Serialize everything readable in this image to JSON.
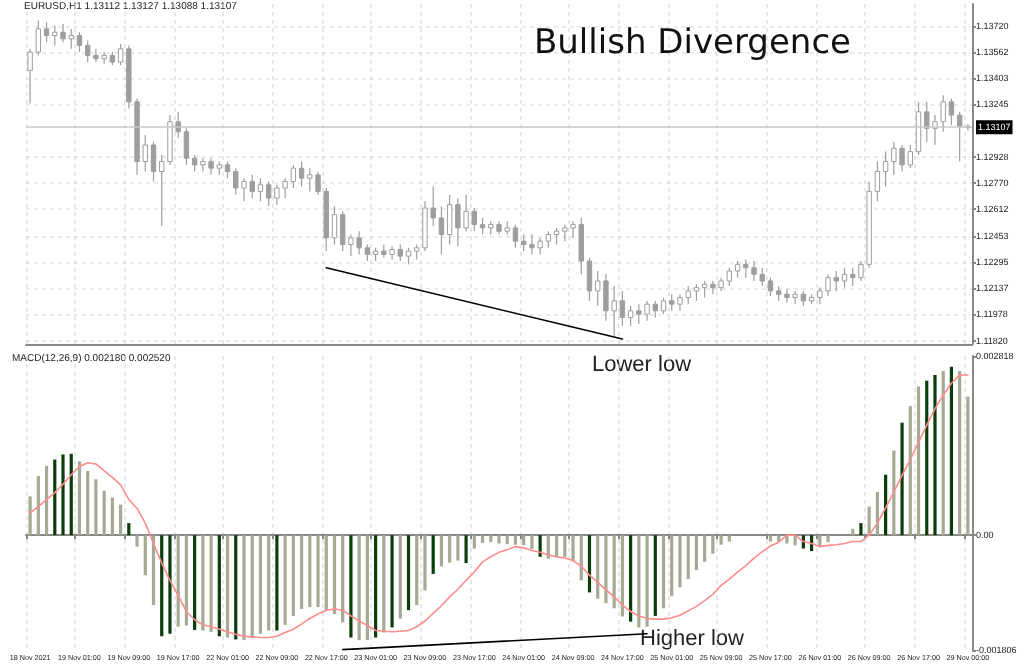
{
  "chart_data": [
    {
      "type": "candlestick",
      "title": "Bullish Divergence",
      "annotations": [
        "EURUSD,H1 1.13112 1.13127 1.13088 1.13107"
      ],
      "color": "#9e9e9e",
      "grid": true,
      "tick_labels": "y",
      "categories": [
        null,
        null,
        null,
        null,
        null,
        null,
        null,
        null,
        null,
        null,
        null,
        null,
        null,
        null,
        null,
        null,
        null,
        null,
        null,
        null,
        null,
        null,
        null,
        null,
        null,
        null,
        null,
        null,
        null,
        null,
        null,
        null,
        null,
        null,
        null,
        null,
        null,
        null,
        null,
        null,
        null,
        null,
        null,
        null,
        null,
        null,
        null,
        null,
        null,
        null,
        null,
        null,
        null,
        null,
        null,
        null,
        null,
        null,
        null,
        null,
        null,
        null,
        null,
        null,
        null,
        null,
        null,
        null,
        null,
        null,
        null,
        null,
        null,
        null,
        null,
        null,
        null,
        null,
        null,
        null,
        null,
        null,
        null,
        null,
        null,
        null,
        null,
        null,
        null,
        null,
        null,
        null,
        null,
        null,
        null,
        null,
        null,
        null,
        null,
        null,
        null,
        null,
        null,
        null,
        null,
        null,
        null,
        null,
        null,
        null,
        null,
        null,
        null,
        null,
        null
      ],
      "ohlc": [
        [
          1.1345,
          1.1358,
          1.1325,
          1.1356
        ],
        [
          1.1356,
          1.1375,
          1.1354,
          1.137
        ],
        [
          1.137,
          1.1374,
          1.1362,
          1.1366
        ],
        [
          1.1366,
          1.1372,
          1.136,
          1.1368
        ],
        [
          1.1368,
          1.1373,
          1.1362,
          1.1364
        ],
        [
          1.1364,
          1.137,
          1.1358,
          1.1366
        ],
        [
          1.1366,
          1.1368,
          1.1356,
          1.136
        ],
        [
          1.136,
          1.1363,
          1.135,
          1.1354
        ],
        [
          1.1354,
          1.1358,
          1.135,
          1.1352
        ],
        [
          1.1352,
          1.1356,
          1.1349,
          1.1354
        ],
        [
          1.1354,
          1.1356,
          1.1348,
          1.135
        ],
        [
          1.135,
          1.1361,
          1.1348,
          1.1358
        ],
        [
          1.1358,
          1.136,
          1.1322,
          1.1326
        ],
        [
          1.1326,
          1.1328,
          1.1282,
          1.129
        ],
        [
          1.129,
          1.1306,
          1.1284,
          1.13
        ],
        [
          1.13,
          1.1302,
          1.1278,
          1.1284
        ],
        [
          1.1284,
          1.1294,
          1.1251,
          1.129
        ],
        [
          1.129,
          1.1318,
          1.1288,
          1.1314
        ],
        [
          1.1314,
          1.132,
          1.1304,
          1.1308
        ],
        [
          1.1308,
          1.131,
          1.1288,
          1.1292
        ],
        [
          1.1292,
          1.1294,
          1.1284,
          1.1288
        ],
        [
          1.1288,
          1.1292,
          1.1284,
          1.129
        ],
        [
          1.129,
          1.1292,
          1.1282,
          1.1286
        ],
        [
          1.1286,
          1.129,
          1.1282,
          1.1288
        ],
        [
          1.1288,
          1.129,
          1.128,
          1.1284
        ],
        [
          1.1284,
          1.1286,
          1.127,
          1.1274
        ],
        [
          1.1274,
          1.128,
          1.1266,
          1.1278
        ],
        [
          1.1278,
          1.1282,
          1.1268,
          1.1272
        ],
        [
          1.1272,
          1.128,
          1.1266,
          1.1276
        ],
        [
          1.1276,
          1.1278,
          1.1263,
          1.1268
        ],
        [
          1.1268,
          1.1276,
          1.1264,
          1.1274
        ],
        [
          1.1274,
          1.128,
          1.1268,
          1.1278
        ],
        [
          1.1278,
          1.1288,
          1.1274,
          1.1286
        ],
        [
          1.1286,
          1.129,
          1.1275,
          1.128
        ],
        [
          1.128,
          1.1286,
          1.1272,
          1.1282
        ],
        [
          1.1282,
          1.1284,
          1.127,
          1.1272
        ],
        [
          1.1272,
          1.1274,
          1.1236,
          1.1244
        ],
        [
          1.1244,
          1.1263,
          1.124,
          1.1258
        ],
        [
          1.1258,
          1.126,
          1.1236,
          1.124
        ],
        [
          1.124,
          1.1246,
          1.1233,
          1.1244
        ],
        [
          1.1244,
          1.1248,
          1.1234,
          1.1238
        ],
        [
          1.1238,
          1.124,
          1.123,
          1.1234
        ],
        [
          1.1234,
          1.1238,
          1.123,
          1.1236
        ],
        [
          1.1236,
          1.124,
          1.1232,
          1.1234
        ],
        [
          1.1234,
          1.1239,
          1.1231,
          1.1237
        ],
        [
          1.1237,
          1.124,
          1.123,
          1.1233
        ],
        [
          1.1233,
          1.1238,
          1.1228,
          1.1236
        ],
        [
          1.1236,
          1.124,
          1.1231,
          1.1238
        ],
        [
          1.1238,
          1.1266,
          1.1236,
          1.1262
        ],
        [
          1.1262,
          1.1275,
          1.1251,
          1.1256
        ],
        [
          1.1256,
          1.1263,
          1.1234,
          1.1246
        ],
        [
          1.1246,
          1.127,
          1.124,
          1.1264
        ],
        [
          1.1264,
          1.1268,
          1.1239,
          1.125
        ],
        [
          1.125,
          1.127,
          1.1248,
          1.126
        ],
        [
          1.126,
          1.1262,
          1.1248,
          1.1252
        ],
        [
          1.1252,
          1.1256,
          1.1246,
          1.125
        ],
        [
          1.125,
          1.1254,
          1.1246,
          1.1252
        ],
        [
          1.1252,
          1.1254,
          1.1246,
          1.1248
        ],
        [
          1.1248,
          1.1254,
          1.1246,
          1.125
        ],
        [
          1.125,
          1.1252,
          1.1238,
          1.1242
        ],
        [
          1.1242,
          1.1246,
          1.1236,
          1.124
        ],
        [
          1.124,
          1.1246,
          1.1234,
          1.1238
        ],
        [
          1.1238,
          1.1244,
          1.1234,
          1.1242
        ],
        [
          1.1242,
          1.1248,
          1.1238,
          1.1246
        ],
        [
          1.1246,
          1.125,
          1.124,
          1.1248
        ],
        [
          1.1248,
          1.1252,
          1.1242,
          1.125
        ],
        [
          1.125,
          1.1254,
          1.1244,
          1.1252
        ],
        [
          1.1252,
          1.1256,
          1.1222,
          1.123
        ],
        [
          1.123,
          1.1232,
          1.1206,
          1.1212
        ],
        [
          1.1212,
          1.1224,
          1.1203,
          1.1218
        ],
        [
          1.1218,
          1.1222,
          1.1194,
          1.12
        ],
        [
          1.12,
          1.1215,
          1.1185,
          1.1206
        ],
        [
          1.1206,
          1.1212,
          1.1191,
          1.1196
        ],
        [
          1.1196,
          1.1203,
          1.1191,
          1.12
        ],
        [
          1.12,
          1.1204,
          1.1192,
          1.1198
        ],
        [
          1.1198,
          1.1206,
          1.1194,
          1.1204
        ],
        [
          1.1204,
          1.1206,
          1.1196,
          1.12
        ],
        [
          1.12,
          1.1208,
          1.1198,
          1.1206
        ],
        [
          1.1206,
          1.121,
          1.12,
          1.1204
        ],
        [
          1.1204,
          1.121,
          1.12,
          1.1208
        ],
        [
          1.1208,
          1.1215,
          1.1204,
          1.1212
        ],
        [
          1.1212,
          1.1216,
          1.1206,
          1.1214
        ],
        [
          1.1214,
          1.1218,
          1.1208,
          1.1216
        ],
        [
          1.1216,
          1.1218,
          1.121,
          1.1214
        ],
        [
          1.1214,
          1.122,
          1.1212,
          1.1218
        ],
        [
          1.1218,
          1.1226,
          1.1215,
          1.1224
        ],
        [
          1.1224,
          1.123,
          1.122,
          1.1228
        ],
        [
          1.1228,
          1.1231,
          1.122,
          1.1226
        ],
        [
          1.1226,
          1.123,
          1.1218,
          1.1222
        ],
        [
          1.1222,
          1.1226,
          1.1215,
          1.1218
        ],
        [
          1.1218,
          1.122,
          1.1209,
          1.1212
        ],
        [
          1.1212,
          1.1215,
          1.1206,
          1.121
        ],
        [
          1.121,
          1.1213,
          1.1205,
          1.1208
        ],
        [
          1.1208,
          1.1212,
          1.1204,
          1.121
        ],
        [
          1.121,
          1.1212,
          1.1203,
          1.1206
        ],
        [
          1.1206,
          1.121,
          1.1204,
          1.1208
        ],
        [
          1.1208,
          1.1214,
          1.1204,
          1.1212
        ],
        [
          1.1212,
          1.1222,
          1.1209,
          1.122
        ],
        [
          1.122,
          1.1224,
          1.1212,
          1.1218
        ],
        [
          1.1218,
          1.1226,
          1.1214,
          1.1222
        ],
        [
          1.1222,
          1.1226,
          1.1215,
          1.122
        ],
        [
          1.122,
          1.123,
          1.1218,
          1.1228
        ],
        [
          1.1228,
          1.1278,
          1.1226,
          1.1272
        ],
        [
          1.1272,
          1.129,
          1.1266,
          1.1284
        ],
        [
          1.1284,
          1.1296,
          1.1275,
          1.129
        ],
        [
          1.129,
          1.1302,
          1.1282,
          1.1298
        ],
        [
          1.1298,
          1.13,
          1.1284,
          1.1288
        ],
        [
          1.1288,
          1.13,
          1.1286,
          1.1296
        ],
        [
          1.1296,
          1.1326,
          1.1294,
          1.132
        ],
        [
          1.132,
          1.1326,
          1.1302,
          1.131
        ],
        [
          1.131,
          1.1318,
          1.13,
          1.1314
        ],
        [
          1.1314,
          1.133,
          1.1308,
          1.1326
        ],
        [
          1.1326,
          1.1328,
          1.1312,
          1.1318
        ],
        [
          1.1318,
          1.132,
          1.129,
          1.1311
        ],
        [
          1.13112,
          1.13127,
          1.13088,
          1.13107
        ]
      ],
      "series": [
        {
          "type": "line",
          "color": "#000000",
          "values": [
            null,
            null,
            null,
            null,
            null,
            null,
            null,
            null,
            null,
            null,
            null,
            null,
            null,
            null,
            null,
            null,
            null,
            null,
            null,
            null,
            null,
            null,
            null,
            null,
            null,
            null,
            null,
            null,
            null,
            null,
            null,
            null,
            null,
            null,
            null,
            null,
            1.1226,
            null,
            null,
            null,
            null,
            null,
            null,
            null,
            null,
            null,
            null,
            null,
            null,
            null,
            null,
            null,
            null,
            null,
            null,
            null,
            null,
            null,
            null,
            null,
            null,
            null,
            null,
            null,
            null,
            null,
            null,
            null,
            null,
            null,
            null,
            null,
            1.1183,
            null,
            null,
            null,
            null,
            null,
            null,
            null,
            null,
            null,
            null,
            null,
            null,
            null,
            null,
            null,
            null,
            null,
            null,
            null,
            null,
            null,
            null,
            null,
            null,
            null,
            null,
            null,
            null,
            null,
            null,
            null,
            null,
            null,
            null,
            null,
            null,
            null,
            null,
            null,
            null,
            null,
            null
          ]
        }
      ],
      "ylim": [
        1.118,
        1.1385
      ],
      "yticks": [
        {
          "value": 1.1372,
          "label": "1.13720"
        },
        1.13562,
        1.13403,
        1.13245,
        1.12928,
        {
          "value": 1.1277,
          "label": "1.12770"
        },
        1.12612,
        1.12453,
        1.12295,
        1.12137,
        1.11978,
        {
          "value": 1.1182,
          "label": "1.11820"
        }
      ],
      "ref_lines": [
        {
          "axis": "y",
          "value": 1.13107,
          "label": "1.13107",
          "color": "#c8c8c8"
        }
      ]
    },
    {
      "type": "bar",
      "annotations": [
        "MACD(12,26,9) 0.002180 0.002520",
        "Lower low",
        "Higher low"
      ],
      "grid": "x",
      "categories": [
        "18 Nov 2021",
        null,
        null,
        null,
        null,
        null,
        "19 Nov 01:00",
        null,
        null,
        null,
        null,
        null,
        "19 Nov 09:00",
        null,
        null,
        null,
        null,
        null,
        "19 Nov 17:00",
        null,
        null,
        null,
        null,
        null,
        "22 Nov 01:00",
        null,
        null,
        null,
        null,
        null,
        "22 Nov 09:00",
        null,
        null,
        null,
        null,
        null,
        "22 Nov 17:00",
        null,
        null,
        null,
        null,
        null,
        "23 Nov 01:00",
        null,
        null,
        null,
        null,
        null,
        "23 Nov 09:00",
        null,
        null,
        null,
        null,
        null,
        "23 Nov 17:00",
        null,
        null,
        null,
        null,
        null,
        "24 Nov 01:00",
        null,
        null,
        null,
        null,
        null,
        "24 Nov 09:00",
        null,
        null,
        null,
        null,
        null,
        "24 Nov 17:00",
        null,
        null,
        null,
        null,
        null,
        "25 Nov 01:00",
        null,
        null,
        null,
        null,
        null,
        "25 Nov 09:00",
        null,
        null,
        null,
        null,
        null,
        "25 Nov 17:00",
        null,
        null,
        null,
        null,
        null,
        "26 Nov 01:00",
        null,
        null,
        null,
        null,
        null,
        "26 Nov 09:00",
        null,
        null,
        null,
        null,
        null,
        "26 Nov 17:00",
        null,
        null,
        null,
        null,
        null,
        "29 Nov 00:00"
      ],
      "series": [
        {
          "type": "bar",
          "colors": [
            "#a4aa94",
            "#a4aa94",
            "#a4aa94",
            "#0b3d0b",
            "#0b3d0b",
            "#0b3d0b",
            "#a4aa94",
            "#a4aa94",
            "#a4aa94",
            "#a4aa94",
            "#a4aa94",
            "#a4aa94",
            "#0b3d0b",
            "#a4aa94",
            "#a4aa94",
            "#a4aa94",
            "#0b3d0b",
            "#0b3d0b",
            "#a4aa94",
            "#a4aa94",
            "#0b3d0b",
            "#a4aa94",
            "#a4aa94",
            "#0b3d0b",
            "#a4aa94",
            "#0b3d0b",
            "#a4aa94",
            "#a4aa94",
            "#a4aa94",
            "#a4aa94",
            "#0b3d0b",
            "#a4aa94",
            "#a4aa94",
            "#a4aa94",
            "#a4aa94",
            "#a4aa94",
            "#a4aa94",
            "#a4aa94",
            "#a4aa94",
            "#0b3d0b",
            "#a4aa94",
            "#a4aa94",
            "#0b3d0b",
            "#a4aa94",
            "#0b3d0b",
            "#a4aa94",
            "#0b3d0b",
            "#a4aa94",
            "#a4aa94",
            "#0b3d0b",
            "#a4aa94",
            "#a4aa94",
            "#a4aa94",
            "#0b3d0b",
            "#a4aa94",
            "#a4aa94",
            "#a4aa94",
            "#a4aa94",
            "#a4aa94",
            "#a4aa94",
            "#a4aa94",
            "#a4aa94",
            "#0b3d0b",
            "#a4aa94",
            "#a4aa94",
            "#a4aa94",
            "#a4aa94",
            "#a4aa94",
            "#0b3d0b",
            "#a4aa94",
            "#a4aa94",
            "#a4aa94",
            "#a4aa94",
            "#0b3d0b",
            "#a4aa94",
            "#a4aa94",
            "#0b3d0b",
            "#a4aa94",
            "#a4aa94",
            "#a4aa94",
            "#a4aa94",
            "#a4aa94",
            "#a4aa94",
            "#a4aa94",
            "#a4aa94",
            "#a4aa94",
            "#a4aa94",
            "#a4aa94",
            "#a4aa94",
            "#a4aa94",
            "#a4aa94",
            "#a4aa94",
            "#a4aa94",
            "#a4aa94",
            "#0b3d0b",
            "#0b3d0b",
            "#a4aa94",
            "#a4aa94",
            "#a4aa94",
            "#0b3d0b",
            "#a4aa94",
            "#0b3d0b",
            "#a4aa94",
            "#a4aa94",
            "#0b3d0b",
            "#a4aa94",
            "#0b3d0b",
            "#a4aa94",
            "#a4aa94",
            "#0b3d0b",
            "#0b3d0b",
            "#a4aa94",
            "#0b3d0b",
            "#a4aa94",
            "#a4aa94"
          ],
          "values": [
            0.00061,
            0.00093,
            0.00109,
            0.00119,
            0.00127,
            0.00128,
            0.00116,
            0.00101,
            0.00088,
            0.0007,
            0.00059,
            0.00048,
            0.00019,
            -0.00018,
            -0.00063,
            -0.0011,
            -0.00159,
            -0.00155,
            -0.00144,
            -0.00142,
            -0.00149,
            -0.0015,
            -0.00152,
            -0.00159,
            -0.00161,
            -0.00164,
            -0.00165,
            -0.00162,
            -0.00155,
            -0.0015,
            -0.0015,
            -0.00141,
            -0.00127,
            -0.00116,
            -0.00113,
            -0.00113,
            -0.00118,
            -0.00124,
            -0.00137,
            -0.00161,
            -0.00165,
            -0.00165,
            -0.00161,
            -0.00153,
            -0.00145,
            -0.00131,
            -0.00118,
            -0.0011,
            -0.00087,
            -0.00061,
            -0.00049,
            -0.00043,
            -0.0004,
            -0.00044,
            -0.00021,
            -0.00012,
            -0.00011,
            -0.00013,
            -0.00014,
            -0.00015,
            -0.00016,
            -0.00022,
            -0.00034,
            -0.00037,
            -0.00035,
            -0.00034,
            -0.00041,
            -0.00071,
            -0.0009,
            -0.001,
            -0.00107,
            -0.00115,
            -0.00128,
            -0.00136,
            -0.00145,
            -0.00144,
            -0.00127,
            -0.00115,
            -0.00096,
            -0.00082,
            -0.00069,
            -0.00055,
            -0.00042,
            -0.00029,
            -0.00015,
            -0.0001,
            0,
            0,
            0,
            0,
            -0.0001,
            -0.0001,
            -0.00013,
            -0.00016,
            -0.00021,
            -0.00025,
            -0.00018,
            -0.00011,
            0,
            0,
            0.0001,
            0.00019,
            0.00045,
            0.00068,
            0.00095,
            0.00133,
            0.00177,
            0.00203,
            0.00234,
            0.00243,
            0.00252,
            0.00258,
            0.00265,
            0.00258,
            0.00218
          ]
        },
        {
          "type": "line",
          "color": "#ff8c8c",
          "values": [
            0.00035,
            0.00045,
            0.00056,
            0.00067,
            0.0008,
            0.00095,
            0.00108,
            0.00114,
            0.00112,
            0.00101,
            0.00091,
            0.00079,
            0.00056,
            0.00042,
            0.00019,
            -0.00013,
            -0.00044,
            -0.00071,
            -0.00095,
            -0.0012,
            -0.00133,
            -0.00141,
            -0.00144,
            -0.00148,
            -0.00152,
            -0.00156,
            -0.00159,
            -0.0016,
            -0.00161,
            -0.00161,
            -0.00159,
            -0.00153,
            -0.00148,
            -0.0014,
            -0.00131,
            -0.00124,
            -0.00118,
            -0.00116,
            -0.00118,
            -0.00127,
            -0.00135,
            -0.00142,
            -0.0015,
            -0.00151,
            -0.00152,
            -0.00151,
            -0.0015,
            -0.00144,
            -0.00135,
            -0.00123,
            -0.00111,
            -0.00097,
            -0.00085,
            -0.00071,
            -0.00058,
            -0.00042,
            -0.00034,
            -0.00027,
            -0.00023,
            -0.00018,
            -0.0002,
            -0.00024,
            -0.00027,
            -0.00031,
            -0.00034,
            -0.00036,
            -0.0004,
            -0.00049,
            -0.00063,
            -0.00074,
            -0.00086,
            -0.00097,
            -0.0011,
            -0.0012,
            -0.00127,
            -0.00131,
            -0.00132,
            -0.00132,
            -0.0013,
            -0.00126,
            -0.00119,
            -0.00112,
            -0.00103,
            -0.00093,
            -0.00079,
            -0.00069,
            -0.00058,
            -0.00048,
            -0.00036,
            -0.00026,
            -0.00017,
            -0.00011,
            0,
            0,
            -0.0001,
            -0.00013,
            -0.00018,
            -0.00016,
            -0.00015,
            -0.00013,
            -0.0001,
            -0.0001,
            0,
            0.00019,
            0.00043,
            0.00068,
            0.00094,
            0.00119,
            0.00146,
            0.00173,
            0.00199,
            0.0022,
            0.00239,
            0.00252,
            0.00252
          ]
        },
        {
          "type": "line",
          "color": "#000000",
          "values": [
            null,
            null,
            null,
            null,
            null,
            null,
            null,
            null,
            null,
            null,
            null,
            null,
            null,
            null,
            null,
            null,
            null,
            null,
            null,
            null,
            null,
            null,
            null,
            null,
            null,
            null,
            null,
            null,
            null,
            null,
            null,
            null,
            null,
            null,
            null,
            null,
            null,
            null,
            -0.0018,
            null,
            null,
            null,
            null,
            null,
            null,
            null,
            null,
            null,
            null,
            null,
            null,
            null,
            null,
            null,
            null,
            null,
            null,
            null,
            null,
            null,
            null,
            null,
            null,
            null,
            null,
            null,
            null,
            null,
            null,
            null,
            null,
            null,
            null,
            null,
            null,
            -0.00155,
            null,
            null,
            null,
            null,
            null,
            null,
            null,
            null,
            null,
            null,
            null,
            null,
            null,
            null,
            null,
            null,
            null,
            null,
            null,
            null,
            null,
            null,
            null,
            null,
            null,
            null,
            null,
            null,
            null,
            null,
            null,
            null,
            null,
            null,
            null,
            null,
            null,
            null,
            null
          ]
        }
      ],
      "ylim": [
        -0.001806,
        0.002818
      ],
      "yticks": [
        0.002818,
        {
          "value": 0,
          "label": "0.00"
        },
        -0.001806
      ]
    }
  ]
}
